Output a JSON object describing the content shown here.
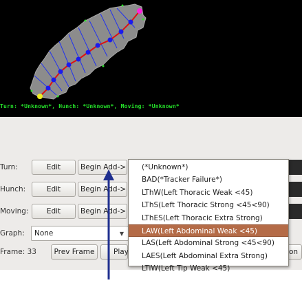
{
  "status_line": "Turn: *Unknown*, Hunch: *Unknown*, Moving: *Unknown*",
  "rows": [
    {
      "label": "Turn:",
      "edit": "Edit",
      "begin": "Begin Add->"
    },
    {
      "label": "Hunch:",
      "edit": "Edit",
      "begin": "Begin Add->"
    },
    {
      "label": "Moving:",
      "edit": "Edit",
      "begin": "Begin Add->"
    }
  ],
  "graph": {
    "label": "Graph:",
    "value": "None"
  },
  "frame": {
    "label": "Frame: 33",
    "prev_label": "Prev Frame",
    "play_label": "Play",
    "right_partial": "on"
  },
  "menu": {
    "items": [
      "(*Unknown*)",
      "BAD(*Tracker Failure*)",
      "LThW(Left Thoracic Weak <45)",
      "LThS(Left Thoracic Strong <45<90)",
      "LThES(Left Thoracic Extra Strong)",
      "LAW(Left Abdominal Weak <45)",
      "LAS(Left Abdominal Strong <45<90)",
      "LAES(Left Abdominal Extra Strong)",
      "LTiW(Left Tip Weak <45)"
    ],
    "selected_index": 5
  },
  "colors": {
    "status_text": "#25e02a",
    "menu_highlight": "#b46b47",
    "annotation_arrow": "#1f2f8f",
    "spine": "#dd1111",
    "spine_nodes": "#1a1aee",
    "head_marker": "#ff22dd",
    "tail_marker": "#f0f020"
  }
}
